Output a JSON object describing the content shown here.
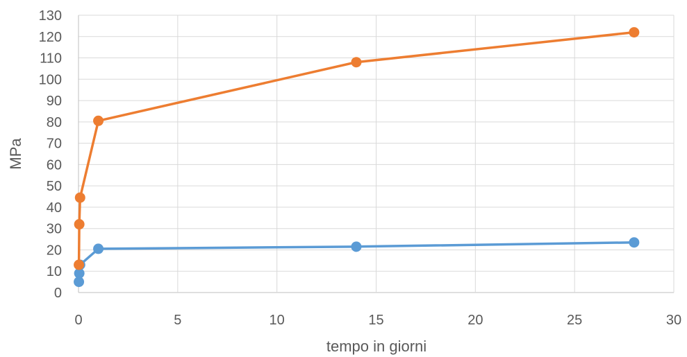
{
  "chart_data": {
    "type": "line",
    "title": "",
    "xlabel": "tempo in giorni",
    "ylabel": "MPa",
    "xlim": [
      0,
      30
    ],
    "ylim": [
      0,
      130
    ],
    "x_ticks": [
      0,
      5,
      10,
      15,
      20,
      25,
      30
    ],
    "y_ticks": [
      0,
      10,
      20,
      30,
      40,
      50,
      60,
      70,
      80,
      90,
      100,
      110,
      120,
      130
    ],
    "grid": true,
    "legend": "none",
    "series": [
      {
        "color": "#5b9bd5",
        "points": [
          {
            "x": 0.02,
            "y": 5
          },
          {
            "x": 0.04,
            "y": 9
          },
          {
            "x": 0.08,
            "y": 13
          },
          {
            "x": 1,
            "y": 20.5
          },
          {
            "x": 14,
            "y": 21.5
          },
          {
            "x": 28,
            "y": 23.5
          }
        ]
      },
      {
        "color": "#ed7d31",
        "points": [
          {
            "x": 0.02,
            "y": 13
          },
          {
            "x": 0.04,
            "y": 32
          },
          {
            "x": 0.08,
            "y": 44.5
          },
          {
            "x": 1,
            "y": 80.5
          },
          {
            "x": 14,
            "y": 108
          },
          {
            "x": 28,
            "y": 122
          }
        ]
      }
    ]
  }
}
